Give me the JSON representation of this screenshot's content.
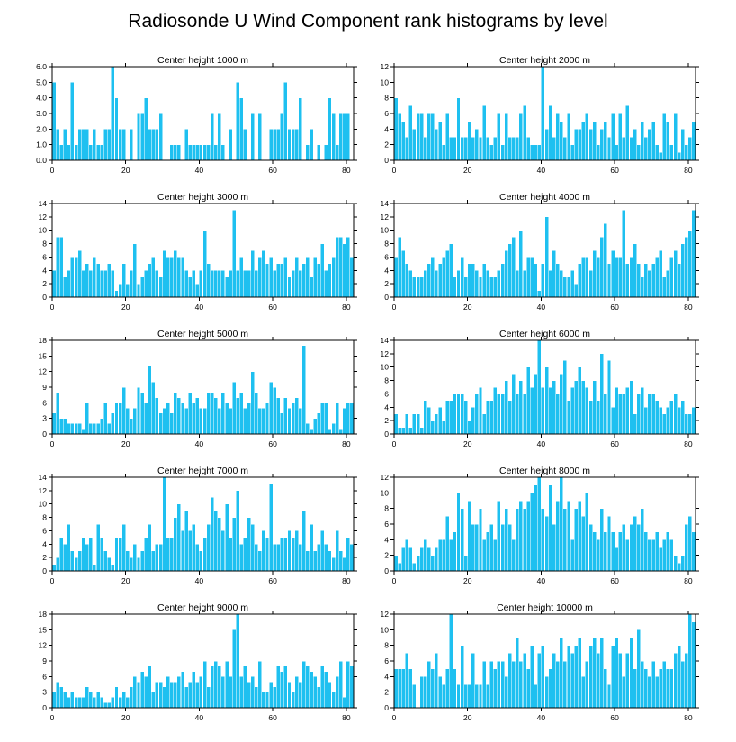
{
  "figure_title": "Radiosonde U Wind Component rank histograms by level",
  "colors": {
    "bar": "#1ec0f0",
    "axis": "#000000",
    "background": "#ffffff"
  },
  "chart_data": [
    {
      "type": "bar",
      "title": "Center height 1000 m",
      "x_start": 0,
      "xlim": [
        0,
        82
      ],
      "x_ticks": [
        0,
        20,
        40,
        60,
        80
      ],
      "ylim": [
        0,
        6
      ],
      "y_ticks": [
        0,
        1,
        2,
        3,
        4,
        5,
        6
      ],
      "y_tick_labels": [
        "0.0",
        "1.0",
        "2.0",
        "3.0",
        "4.0",
        "5.0",
        "6.0"
      ],
      "values": [
        5,
        2,
        1,
        2,
        1,
        5,
        1,
        2,
        2,
        2,
        1,
        2,
        1,
        1,
        2,
        2,
        6,
        4,
        2,
        2,
        0,
        2,
        0,
        3,
        3,
        4,
        2,
        2,
        2,
        3,
        0,
        0,
        1,
        1,
        1,
        0,
        2,
        1,
        1,
        1,
        1,
        1,
        1,
        3,
        1,
        3,
        1,
        0,
        2,
        0,
        5,
        4,
        2,
        0,
        3,
        0,
        3,
        0,
        0,
        2,
        2,
        2,
        3,
        5,
        2,
        2,
        2,
        4,
        0,
        1,
        2,
        0,
        1,
        0,
        1,
        4,
        3,
        1,
        3,
        3,
        3,
        0
      ]
    },
    {
      "type": "bar",
      "title": "Center height 2000 m",
      "x_start": 0,
      "xlim": [
        0,
        82
      ],
      "x_ticks": [
        0,
        20,
        40,
        60,
        80
      ],
      "ylim": [
        0,
        12
      ],
      "y_ticks": [
        0,
        2,
        4,
        6,
        8,
        10,
        12
      ],
      "y_tick_labels": [
        "0",
        "2",
        "4",
        "6",
        "8",
        "10",
        "12"
      ],
      "values": [
        8,
        6,
        5,
        3,
        7,
        4,
        6,
        6,
        3,
        6,
        6,
        4,
        5,
        2,
        6,
        3,
        3,
        8,
        3,
        3,
        5,
        3,
        4,
        3,
        7,
        3,
        2,
        3,
        6,
        2,
        6,
        3,
        3,
        3,
        6,
        7,
        3,
        2,
        2,
        2,
        12,
        4,
        7,
        3,
        6,
        5,
        3,
        6,
        2,
        4,
        4,
        5,
        6,
        4,
        5,
        2,
        4,
        5,
        3,
        6,
        2,
        6,
        3,
        7,
        3,
        4,
        2,
        5,
        3,
        4,
        5,
        2,
        1,
        6,
        5,
        2,
        6,
        1,
        4,
        2,
        3,
        5,
        6
      ]
    },
    {
      "type": "bar",
      "title": "Center height 3000 m",
      "x_start": 0,
      "xlim": [
        0,
        82
      ],
      "x_ticks": [
        0,
        20,
        40,
        60,
        80
      ],
      "ylim": [
        0,
        14
      ],
      "y_ticks": [
        0,
        2,
        4,
        6,
        8,
        10,
        12,
        14
      ],
      "y_tick_labels": [
        "0",
        "2",
        "4",
        "6",
        "8",
        "10",
        "12",
        "14"
      ],
      "values": [
        4,
        9,
        9,
        3,
        4,
        6,
        6,
        7,
        4,
        5,
        4,
        6,
        5,
        4,
        4,
        5,
        4,
        1,
        2,
        5,
        2,
        4,
        8,
        2,
        3,
        4,
        5,
        6,
        4,
        3,
        7,
        6,
        6,
        7,
        6,
        6,
        4,
        3,
        4,
        2,
        4,
        10,
        5,
        4,
        4,
        4,
        4,
        3,
        4,
        13,
        4,
        6,
        4,
        4,
        7,
        4,
        6,
        7,
        5,
        6,
        4,
        5,
        5,
        6,
        3,
        4,
        6,
        4,
        5,
        6,
        3,
        6,
        5,
        8,
        4,
        5,
        6,
        9,
        9,
        8,
        9,
        6
      ]
    },
    {
      "type": "bar",
      "title": "Center height 4000 m",
      "x_start": 0,
      "xlim": [
        0,
        82
      ],
      "x_ticks": [
        0,
        20,
        40,
        60,
        80
      ],
      "ylim": [
        0,
        14
      ],
      "y_ticks": [
        0,
        2,
        4,
        6,
        8,
        10,
        12,
        14
      ],
      "y_tick_labels": [
        "0",
        "2",
        "4",
        "6",
        "8",
        "10",
        "12",
        "14"
      ],
      "values": [
        6,
        9,
        7,
        5,
        4,
        3,
        3,
        3,
        4,
        5,
        6,
        4,
        5,
        6,
        7,
        8,
        3,
        4,
        6,
        3,
        5,
        5,
        4,
        3,
        5,
        4,
        3,
        3,
        4,
        5,
        7,
        8,
        9,
        4,
        10,
        4,
        6,
        6,
        5,
        1,
        5,
        12,
        4,
        7,
        5,
        4,
        3,
        3,
        4,
        2,
        5,
        6,
        6,
        4,
        7,
        6,
        9,
        11,
        5,
        7,
        6,
        6,
        13,
        5,
        6,
        8,
        5,
        3,
        5,
        4,
        5,
        6,
        7,
        3,
        4,
        6,
        7,
        5,
        8,
        9,
        10,
        13
      ]
    },
    {
      "type": "bar",
      "title": "Center height 5000 m",
      "x_start": 0,
      "xlim": [
        0,
        82
      ],
      "x_ticks": [
        0,
        20,
        40,
        60,
        80
      ],
      "ylim": [
        0,
        18
      ],
      "y_ticks": [
        0,
        3,
        6,
        9,
        12,
        15,
        18
      ],
      "y_tick_labels": [
        "0",
        "3",
        "6",
        "9",
        "12",
        "15",
        "18"
      ],
      "values": [
        4,
        8,
        3,
        3,
        2,
        2,
        2,
        2,
        1,
        6,
        2,
        2,
        2,
        3,
        6,
        2,
        4,
        6,
        6,
        9,
        5,
        3,
        5,
        9,
        8,
        6,
        13,
        10,
        7,
        4,
        5,
        6,
        4,
        8,
        7,
        6,
        5,
        8,
        6,
        7,
        5,
        5,
        8,
        8,
        7,
        5,
        8,
        6,
        5,
        10,
        7,
        8,
        5,
        6,
        12,
        8,
        5,
        5,
        6,
        10,
        9,
        7,
        4,
        7,
        5,
        6,
        7,
        5,
        17,
        2,
        1,
        3,
        4,
        6,
        6,
        1,
        2,
        6,
        1,
        5,
        6,
        6
      ]
    },
    {
      "type": "bar",
      "title": "Center height 6000 m",
      "x_start": 0,
      "xlim": [
        0,
        82
      ],
      "x_ticks": [
        0,
        20,
        40,
        60,
        80
      ],
      "ylim": [
        0,
        14
      ],
      "y_ticks": [
        0,
        2,
        4,
        6,
        8,
        10,
        12,
        14
      ],
      "y_tick_labels": [
        "0",
        "2",
        "4",
        "6",
        "8",
        "10",
        "12",
        "14"
      ],
      "values": [
        3,
        1,
        1,
        3,
        1,
        3,
        3,
        1,
        5,
        4,
        2,
        3,
        4,
        2,
        5,
        5,
        6,
        6,
        6,
        5,
        2,
        4,
        6,
        7,
        3,
        5,
        5,
        7,
        6,
        6,
        8,
        5,
        9,
        6,
        8,
        6,
        10,
        7,
        9,
        14,
        7,
        10,
        7,
        8,
        6,
        9,
        11,
        5,
        7,
        8,
        10,
        8,
        7,
        5,
        8,
        5,
        12,
        6,
        11,
        4,
        7,
        6,
        6,
        7,
        8,
        3,
        6,
        7,
        4,
        6,
        6,
        5,
        4,
        3,
        4,
        5,
        6,
        4,
        5,
        3,
        3,
        4
      ]
    },
    {
      "type": "bar",
      "title": "Center height 7000 m",
      "x_start": 0,
      "xlim": [
        0,
        82
      ],
      "x_ticks": [
        0,
        20,
        40,
        60,
        80
      ],
      "ylim": [
        0,
        14
      ],
      "y_ticks": [
        0,
        2,
        4,
        6,
        8,
        10,
        12,
        14
      ],
      "y_tick_labels": [
        "0",
        "2",
        "4",
        "6",
        "8",
        "10",
        "12",
        "14"
      ],
      "values": [
        1,
        2,
        5,
        4,
        7,
        3,
        2,
        3,
        5,
        4,
        5,
        1,
        7,
        5,
        3,
        2,
        1,
        5,
        5,
        7,
        3,
        2,
        4,
        2,
        3,
        5,
        7,
        3,
        4,
        4,
        14,
        5,
        5,
        8,
        10,
        6,
        9,
        6,
        7,
        4,
        3,
        5,
        7,
        11,
        9,
        8,
        6,
        10,
        5,
        8,
        12,
        4,
        5,
        8,
        7,
        4,
        3,
        6,
        5,
        13,
        4,
        4,
        5,
        5,
        6,
        5,
        6,
        4,
        9,
        3,
        7,
        3,
        4,
        6,
        4,
        3,
        2,
        6,
        3,
        2,
        5,
        4,
        2
      ]
    },
    {
      "type": "bar",
      "title": "Center height 8000 m",
      "x_start": 0,
      "xlim": [
        0,
        82
      ],
      "x_ticks": [
        0,
        20,
        40,
        60,
        80
      ],
      "ylim": [
        0,
        12
      ],
      "y_ticks": [
        0,
        2,
        4,
        6,
        8,
        10,
        12
      ],
      "y_tick_labels": [
        "0",
        "2",
        "4",
        "6",
        "8",
        "10",
        "12"
      ],
      "values": [
        2,
        1,
        3,
        4,
        3,
        1,
        2,
        3,
        4,
        3,
        2,
        3,
        4,
        4,
        7,
        4,
        5,
        10,
        8,
        2,
        9,
        6,
        6,
        8,
        4,
        5,
        6,
        4,
        9,
        6,
        8,
        6,
        4,
        8,
        9,
        8,
        9,
        10,
        11,
        12,
        8,
        7,
        11,
        6,
        9,
        12,
        8,
        9,
        4,
        8,
        9,
        7,
        10,
        6,
        5,
        4,
        8,
        5,
        7,
        5,
        3,
        5,
        6,
        4,
        6,
        7,
        6,
        8,
        5,
        4,
        4,
        5,
        3,
        4,
        5,
        4,
        2,
        1,
        2,
        6,
        7,
        5
      ]
    },
    {
      "type": "bar",
      "title": "Center height 9000 m",
      "x_start": 0,
      "xlim": [
        0,
        82
      ],
      "x_ticks": [
        0,
        20,
        40,
        60,
        80
      ],
      "ylim": [
        0,
        18
      ],
      "y_ticks": [
        0,
        3,
        6,
        9,
        12,
        15,
        18
      ],
      "y_tick_labels": [
        "0",
        "3",
        "6",
        "9",
        "12",
        "15",
        "18"
      ],
      "values": [
        3,
        5,
        4,
        3,
        2,
        3,
        2,
        2,
        2,
        4,
        3,
        2,
        3,
        2,
        1,
        1,
        2,
        4,
        2,
        3,
        2,
        4,
        6,
        5,
        7,
        6,
        8,
        3,
        5,
        5,
        4,
        6,
        5,
        5,
        6,
        7,
        4,
        5,
        7,
        5,
        6,
        9,
        4,
        8,
        9,
        8,
        6,
        9,
        6,
        15,
        18,
        6,
        8,
        5,
        6,
        4,
        9,
        3,
        3,
        5,
        4,
        8,
        7,
        8,
        5,
        3,
        6,
        5,
        9,
        8,
        7,
        6,
        4,
        8,
        7,
        5,
        3,
        6,
        9,
        2,
        9,
        8
      ]
    },
    {
      "type": "bar",
      "title": "Center height 10000 m",
      "x_start": 0,
      "xlim": [
        0,
        82
      ],
      "x_ticks": [
        0,
        20,
        40,
        60,
        80
      ],
      "ylim": [
        0,
        12
      ],
      "y_ticks": [
        0,
        2,
        4,
        6,
        8,
        10,
        12
      ],
      "y_tick_labels": [
        "0",
        "2",
        "4",
        "6",
        "8",
        "10",
        "12"
      ],
      "values": [
        5,
        5,
        5,
        7,
        5,
        3,
        0,
        4,
        4,
        6,
        5,
        7,
        4,
        3,
        5,
        12,
        5,
        3,
        8,
        3,
        3,
        7,
        3,
        3,
        6,
        3,
        6,
        5,
        6,
        6,
        4,
        7,
        6,
        9,
        6,
        7,
        5,
        8,
        3,
        7,
        8,
        4,
        5,
        7,
        6,
        9,
        6,
        8,
        7,
        8,
        9,
        4,
        6,
        8,
        9,
        7,
        9,
        5,
        3,
        8,
        9,
        7,
        4,
        7,
        9,
        5,
        10,
        6,
        5,
        4,
        6,
        4,
        5,
        6,
        5,
        5,
        7,
        8,
        6,
        7,
        12,
        11
      ]
    }
  ]
}
